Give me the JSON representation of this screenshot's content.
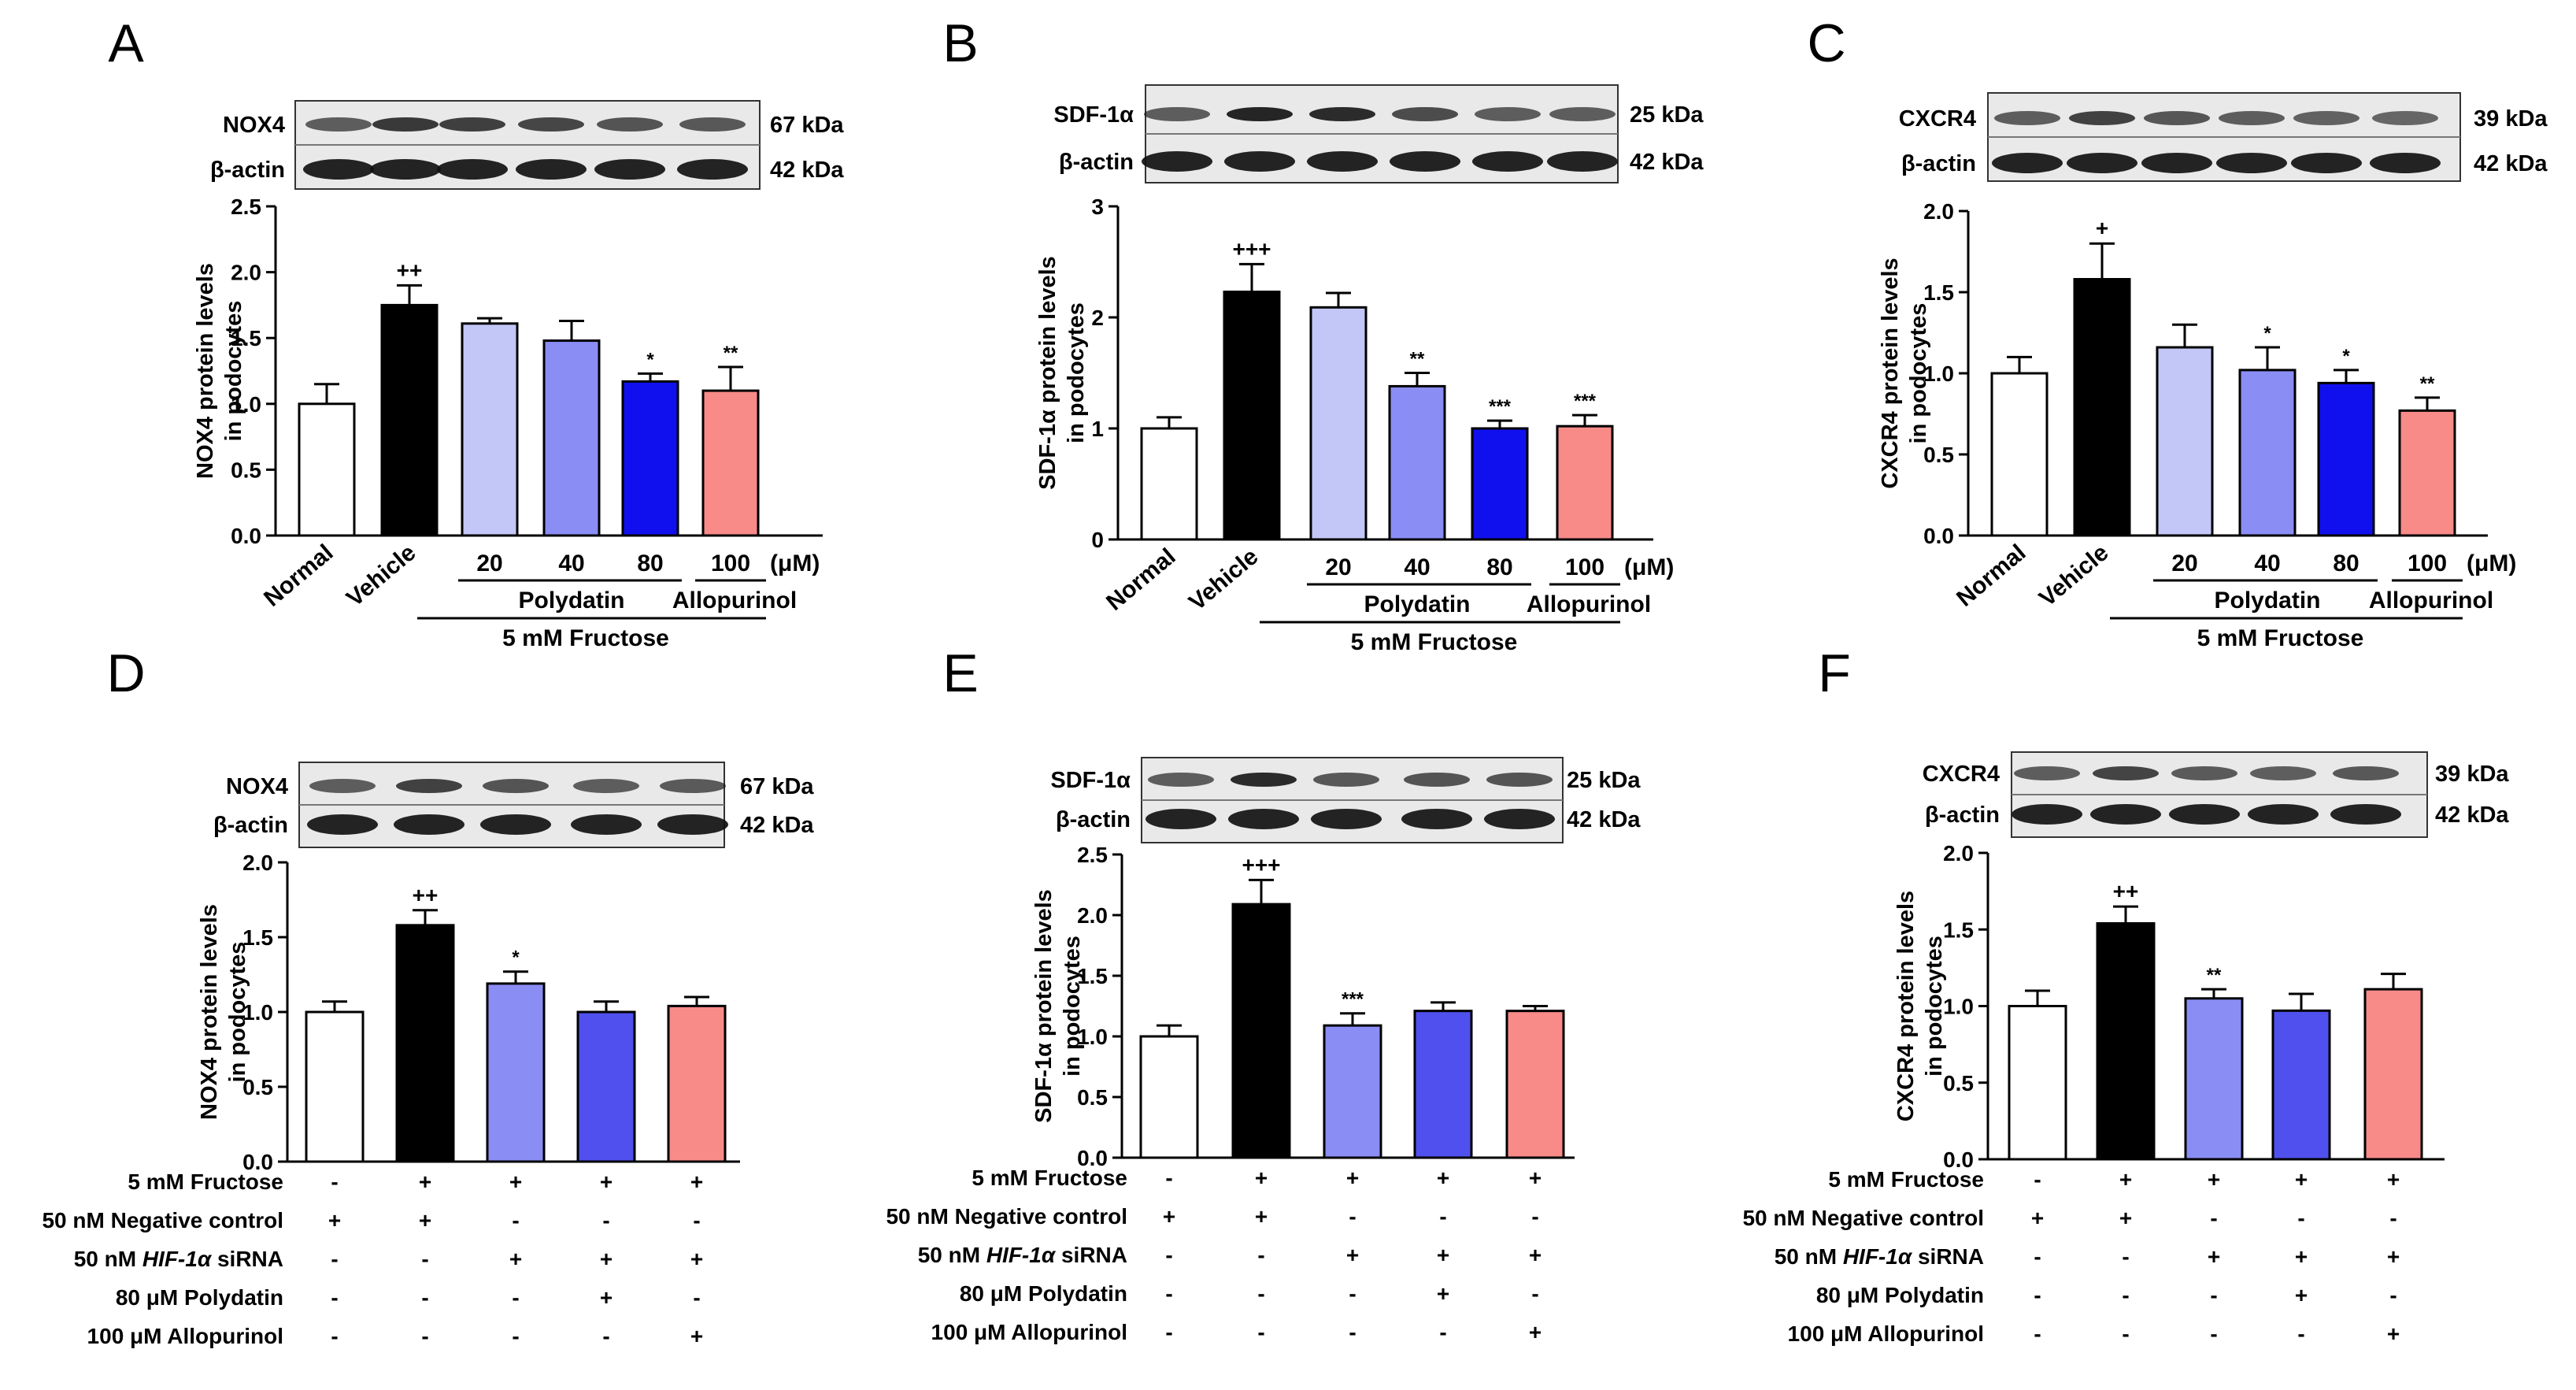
{
  "chart_data": [
    {
      "panel": "A",
      "type": "bar",
      "blot": {
        "protein": "NOX4",
        "protein_kda": "67 kDa",
        "control": "β-actin",
        "control_kda": "42 kDa"
      },
      "ylabel": [
        "NOX4 protein levels",
        "in podocytes"
      ],
      "ylim": [
        0,
        2.5
      ],
      "yticks": [
        "0.0",
        "0.5",
        "1.0",
        "1.5",
        "2.0",
        "2.5"
      ],
      "categories": [
        "Normal",
        "Vehicle",
        "20",
        "40",
        "80",
        "100"
      ],
      "values": [
        1.0,
        1.75,
        1.61,
        1.48,
        1.17,
        1.1
      ],
      "errors": [
        0.15,
        0.15,
        0.04,
        0.15,
        0.06,
        0.18
      ],
      "significance": [
        "",
        "++",
        "",
        "",
        "*",
        "**"
      ],
      "colors": [
        "#ffffff",
        "#000000",
        "#c3c7f7",
        "#8a8df4",
        "#1010ee",
        "#f88a88"
      ],
      "unit": "(μM)",
      "groups": {
        "polydatin": "Polydatin",
        "allopurinol": "Allopurinol",
        "treatment": "5 mM Fructose"
      }
    },
    {
      "panel": "B",
      "type": "bar",
      "blot": {
        "protein": "SDF-1α",
        "protein_kda": "25 kDa",
        "control": "β-actin",
        "control_kda": "42 kDa"
      },
      "ylabel": [
        "SDF-1α protein levels",
        "in podocytes"
      ],
      "ylim": [
        0,
        3
      ],
      "yticks": [
        "0",
        "1",
        "2",
        "3"
      ],
      "categories": [
        "Normal",
        "Vehicle",
        "20",
        "40",
        "80",
        "100"
      ],
      "values": [
        1.0,
        2.23,
        2.09,
        1.38,
        1.0,
        1.02
      ],
      "errors": [
        0.1,
        0.25,
        0.13,
        0.12,
        0.07,
        0.1
      ],
      "significance": [
        "",
        "+++",
        "",
        "**",
        "***",
        "***"
      ],
      "colors": [
        "#ffffff",
        "#000000",
        "#c3c7f7",
        "#8a8df4",
        "#1010ee",
        "#f88a88"
      ],
      "unit": "(μM)",
      "groups": {
        "polydatin": "Polydatin",
        "allopurinol": "Allopurinol",
        "treatment": "5 mM Fructose"
      }
    },
    {
      "panel": "C",
      "type": "bar",
      "blot": {
        "protein": "CXCR4",
        "protein_kda": "39 kDa",
        "control": "β-actin",
        "control_kda": "42 kDa"
      },
      "ylabel": [
        "CXCR4 protein levels",
        "in podocytes"
      ],
      "ylim": [
        0,
        2.0
      ],
      "yticks": [
        "0.0",
        "0.5",
        "1.0",
        "1.5",
        "2.0"
      ],
      "categories": [
        "Normal",
        "Vehicle",
        "20",
        "40",
        "80",
        "100"
      ],
      "values": [
        1.0,
        1.58,
        1.16,
        1.02,
        0.94,
        0.77
      ],
      "errors": [
        0.1,
        0.22,
        0.14,
        0.14,
        0.08,
        0.08
      ],
      "significance": [
        "",
        "+",
        "",
        "*",
        "*",
        "**"
      ],
      "colors": [
        "#ffffff",
        "#000000",
        "#c3c7f7",
        "#8a8df4",
        "#1010ee",
        "#f88a88"
      ],
      "unit": "(μM)",
      "groups": {
        "polydatin": "Polydatin",
        "allopurinol": "Allopurinol",
        "treatment": "5 mM Fructose"
      }
    },
    {
      "panel": "D",
      "type": "bar",
      "blot": {
        "protein": "NOX4",
        "protein_kda": "67 kDa",
        "control": "β-actin",
        "control_kda": "42 kDa"
      },
      "ylabel": [
        "NOX4 protein levels",
        "in podocytes"
      ],
      "ylim": [
        0,
        2.0
      ],
      "yticks": [
        "0.0",
        "0.5",
        "1.0",
        "1.5",
        "2.0"
      ],
      "values": [
        1.0,
        1.58,
        1.19,
        1.0,
        1.04
      ],
      "errors": [
        0.07,
        0.1,
        0.08,
        0.07,
        0.06
      ],
      "significance": [
        "",
        "++",
        "*",
        "",
        ""
      ],
      "colors": [
        "#ffffff",
        "#000000",
        "#8a8df4",
        "#5050ee",
        "#f88a88"
      ],
      "conditions": [
        {
          "label": "5 mM Fructose",
          "marks": [
            "-",
            "+",
            "+",
            "+",
            "+"
          ]
        },
        {
          "label": "50 nM Negative control",
          "marks": [
            "+",
            "+",
            "-",
            "-",
            "-"
          ]
        },
        {
          "label_pre": "50 nM ",
          "label_italic": "HIF-1α",
          "label_post": " siRNA",
          "marks": [
            "-",
            "-",
            "+",
            "+",
            "+"
          ]
        },
        {
          "label": "80 μM Polydatin",
          "marks": [
            "-",
            "-",
            "-",
            "+",
            "-"
          ]
        },
        {
          "label": "100 μM Allopurinol",
          "marks": [
            "-",
            "-",
            "-",
            "-",
            "+"
          ]
        }
      ]
    },
    {
      "panel": "E",
      "type": "bar",
      "blot": {
        "protein": "SDF-1α",
        "protein_kda": "25 kDa",
        "control": "β-actin",
        "control_kda": "42 kDa"
      },
      "ylabel": [
        "SDF-1α protein levels",
        "in podocytes"
      ],
      "ylim": [
        0,
        2.5
      ],
      "yticks": [
        "0.0",
        "0.5",
        "1.0",
        "1.5",
        "2.0",
        "2.5"
      ],
      "values": [
        1.0,
        2.09,
        1.09,
        1.21,
        1.21
      ],
      "errors": [
        0.09,
        0.2,
        0.1,
        0.07,
        0.04
      ],
      "significance": [
        "",
        "+++",
        "***",
        "",
        ""
      ],
      "colors": [
        "#ffffff",
        "#000000",
        "#8a8df4",
        "#5050ee",
        "#f88a88"
      ],
      "conditions": [
        {
          "label": "5 mM Fructose",
          "marks": [
            "-",
            "+",
            "+",
            "+",
            "+"
          ]
        },
        {
          "label": "50 nM Negative control",
          "marks": [
            "+",
            "+",
            "-",
            "-",
            "-"
          ]
        },
        {
          "label_pre": "50 nM ",
          "label_italic": "HIF-1α",
          "label_post": " siRNA",
          "marks": [
            "-",
            "-",
            "+",
            "+",
            "+"
          ]
        },
        {
          "label": "80 μM Polydatin",
          "marks": [
            "-",
            "-",
            "-",
            "+",
            "-"
          ]
        },
        {
          "label": "100 μM Allopurinol",
          "marks": [
            "-",
            "-",
            "-",
            "-",
            "+"
          ]
        }
      ]
    },
    {
      "panel": "F",
      "type": "bar",
      "blot": {
        "protein": "CXCR4",
        "protein_kda": "39 kDa",
        "control": "β-actin",
        "control_kda": "42 kDa"
      },
      "ylabel": [
        "CXCR4 protein levels",
        "in podocytes"
      ],
      "ylim": [
        0,
        2.0
      ],
      "yticks": [
        "0.0",
        "0.5",
        "1.0",
        "1.5",
        "2.0"
      ],
      "values": [
        1.0,
        1.54,
        1.05,
        0.97,
        1.11
      ],
      "errors": [
        0.1,
        0.11,
        0.06,
        0.11,
        0.1
      ],
      "significance": [
        "",
        "++",
        "**",
        "",
        ""
      ],
      "colors": [
        "#ffffff",
        "#000000",
        "#8a8df4",
        "#5050ee",
        "#f88a88"
      ],
      "conditions": [
        {
          "label": "5 mM Fructose",
          "marks": [
            "-",
            "+",
            "+",
            "+",
            "+"
          ]
        },
        {
          "label": "50 nM Negative control",
          "marks": [
            "+",
            "+",
            "-",
            "-",
            "-"
          ]
        },
        {
          "label_pre": "50 nM ",
          "label_italic": "HIF-1α",
          "label_post": " siRNA",
          "marks": [
            "-",
            "-",
            "+",
            "+",
            "+"
          ]
        },
        {
          "label": "80 μM Polydatin",
          "marks": [
            "-",
            "-",
            "-",
            "+",
            "-"
          ]
        },
        {
          "label": "100 μM Allopurinol",
          "marks": [
            "-",
            "-",
            "-",
            "-",
            "+"
          ]
        }
      ]
    }
  ]
}
